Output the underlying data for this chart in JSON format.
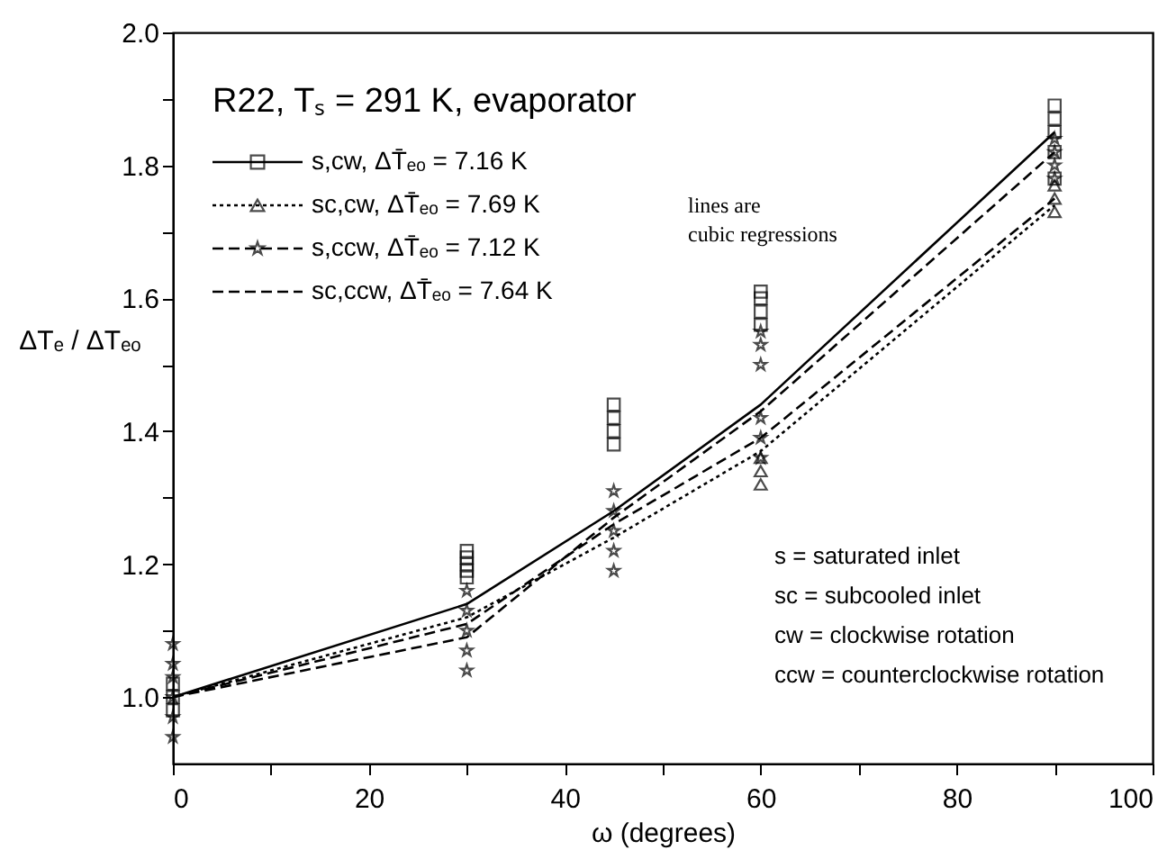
{
  "chart_data": {
    "type": "line",
    "title": "R22, Tₛ = 291 K, evaporator",
    "xlabel": "ω (degrees)",
    "ylabel": "ΔTₑ / ΔTₑₒ",
    "xlim": [
      0,
      100
    ],
    "ylim": [
      0.9,
      2.0
    ],
    "xticks": [
      0,
      {
        "value": 10,
        "label": null
      },
      20,
      {
        "value": 30,
        "label": null
      },
      40,
      {
        "value": 50,
        "label": null
      },
      60,
      {
        "value": 70,
        "label": null
      },
      80,
      {
        "value": 90,
        "label": null
      },
      100
    ],
    "yticks": [
      {
        "value": 1.0,
        "label": "1.0"
      },
      {
        "value": 1.1,
        "label": null
      },
      {
        "value": 1.2,
        "label": "1.2"
      },
      {
        "value": 1.3,
        "label": null
      },
      {
        "value": 1.4,
        "label": "1.4"
      },
      {
        "value": 1.5,
        "label": null
      },
      {
        "value": 1.6,
        "label": "1.6"
      },
      {
        "value": 1.7,
        "label": null
      },
      {
        "value": 1.8,
        "label": "1.8"
      },
      {
        "value": 1.9,
        "label": null
      },
      {
        "value": 2.0,
        "label": "2.0"
      }
    ],
    "grid": false,
    "legend": "top left",
    "series": [
      {
        "name": "s,cw, ΔT̄ₑₒ = 7.16 K",
        "color": "#000000",
        "line_style": "solid",
        "x": [
          0,
          30,
          45,
          60,
          90
        ],
        "values": [
          1.0,
          1.14,
          1.28,
          1.44,
          1.85
        ]
      },
      {
        "name": "sc,cw, ΔT̄ₑₒ = 7.69 K",
        "color": "#000000",
        "line_style": "dotted",
        "x": [
          0,
          30,
          45,
          60,
          90
        ],
        "values": [
          1.0,
          1.12,
          1.24,
          1.37,
          1.74
        ]
      },
      {
        "name": "s,ccw, ΔT̄ₑₒ = 7.12 K",
        "color": "#000000",
        "line_style": "dashed",
        "x": [
          0,
          30,
          45,
          60,
          90
        ],
        "values": [
          1.0,
          1.09,
          1.27,
          1.43,
          1.82
        ]
      },
      {
        "name": "sc,ccw, ΔT̄ₑₒ = 7.64 K",
        "color": "#000000",
        "line_style": "dashed",
        "x": [
          0,
          30,
          45,
          60,
          90
        ],
        "values": [
          1.0,
          1.11,
          1.26,
          1.39,
          1.75
        ]
      },
      {
        "type": "scatter",
        "color": "#000000",
        "marker": "square",
        "x": [
          0,
          0,
          0,
          30,
          30,
          30,
          30,
          30,
          45,
          45,
          45,
          45,
          60,
          60,
          60,
          60,
          90,
          90,
          90,
          90,
          90
        ],
        "values": [
          0.98,
          1.0,
          1.02,
          1.18,
          1.19,
          1.2,
          1.21,
          1.22,
          1.38,
          1.4,
          1.42,
          1.44,
          1.56,
          1.58,
          1.6,
          1.61,
          1.78,
          1.82,
          1.85,
          1.87,
          1.89
        ]
      },
      {
        "type": "scatter",
        "color": "#000000",
        "marker": "triangle",
        "x": [
          60,
          60,
          60,
          90,
          90,
          90
        ],
        "values": [
          1.32,
          1.34,
          1.36,
          1.73,
          1.75,
          1.77
        ]
      },
      {
        "type": "scatter",
        "color": "#000000",
        "marker": "star",
        "x": [
          0,
          0,
          0,
          0,
          0,
          0,
          30,
          30,
          30,
          30,
          30,
          45,
          45,
          45,
          45,
          45,
          60,
          60,
          60,
          60,
          60,
          60,
          90,
          90,
          90,
          90
        ],
        "values": [
          0.94,
          0.97,
          1.0,
          1.03,
          1.05,
          1.08,
          1.04,
          1.07,
          1.1,
          1.13,
          1.16,
          1.19,
          1.22,
          1.25,
          1.28,
          1.31,
          1.36,
          1.39,
          1.42,
          1.5,
          1.53,
          1.55,
          1.78,
          1.8,
          1.82,
          1.84
        ]
      }
    ],
    "annotations": [
      "lines are cubic regressions",
      "s = saturated inlet",
      "sc = subcooled inlet",
      "cw = clockwise rotation",
      "ccw = counterclockwise rotation"
    ]
  }
}
